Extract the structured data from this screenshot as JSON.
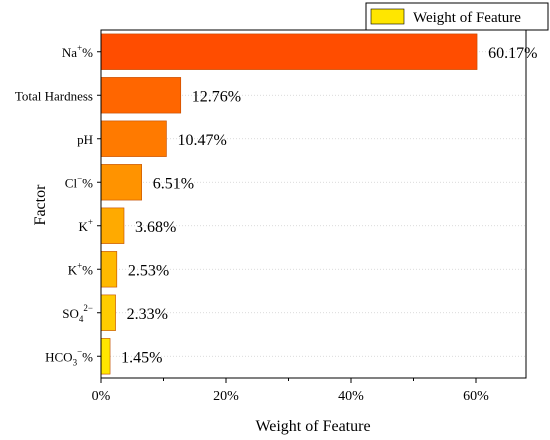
{
  "chart_data": {
    "type": "bar",
    "orientation": "horizontal",
    "xlabel": "Weight of Feature",
    "ylabel": "Factor",
    "xlim": [
      0,
      68
    ],
    "x_ticks": [
      0,
      20,
      40,
      60
    ],
    "x_tick_labels": [
      "0%",
      "20%",
      "40%",
      "60%"
    ],
    "grid": "horizontal dotted",
    "legend": {
      "position": "top-right",
      "label": "Weight of Feature",
      "color": "#FFE600"
    },
    "categories": [
      {
        "base": "Na",
        "sup": "+",
        "sub": "",
        "suffix": "%"
      },
      {
        "base": "Total Hardness",
        "sup": "",
        "sub": "",
        "suffix": ""
      },
      {
        "base": "pH",
        "sup": "",
        "sub": "",
        "suffix": ""
      },
      {
        "base": "Cl",
        "sup": "−",
        "sub": "",
        "suffix": "%"
      },
      {
        "base": "K",
        "sup": "+",
        "sub": "",
        "suffix": ""
      },
      {
        "base": "K",
        "sup": "+",
        "sub": "",
        "suffix": "%"
      },
      {
        "base": "SO",
        "sup": "2−",
        "sub": "4",
        "suffix": ""
      },
      {
        "base": "HCO",
        "sup": "−",
        "sub": "3",
        "suffix": "%"
      }
    ],
    "values": [
      60.17,
      12.76,
      10.47,
      6.51,
      3.68,
      2.53,
      2.33,
      1.45
    ],
    "value_labels": [
      "60.17%",
      "12.76%",
      "10.47%",
      "6.51%",
      "3.68%",
      "2.53%",
      "2.33%",
      "1.45%"
    ],
    "bar_colors": [
      "#FF4D00",
      "#FF6600",
      "#FF7A00",
      "#FF9300",
      "#FFAA00",
      "#FFB900",
      "#FFCC00",
      "#FFE600"
    ]
  }
}
